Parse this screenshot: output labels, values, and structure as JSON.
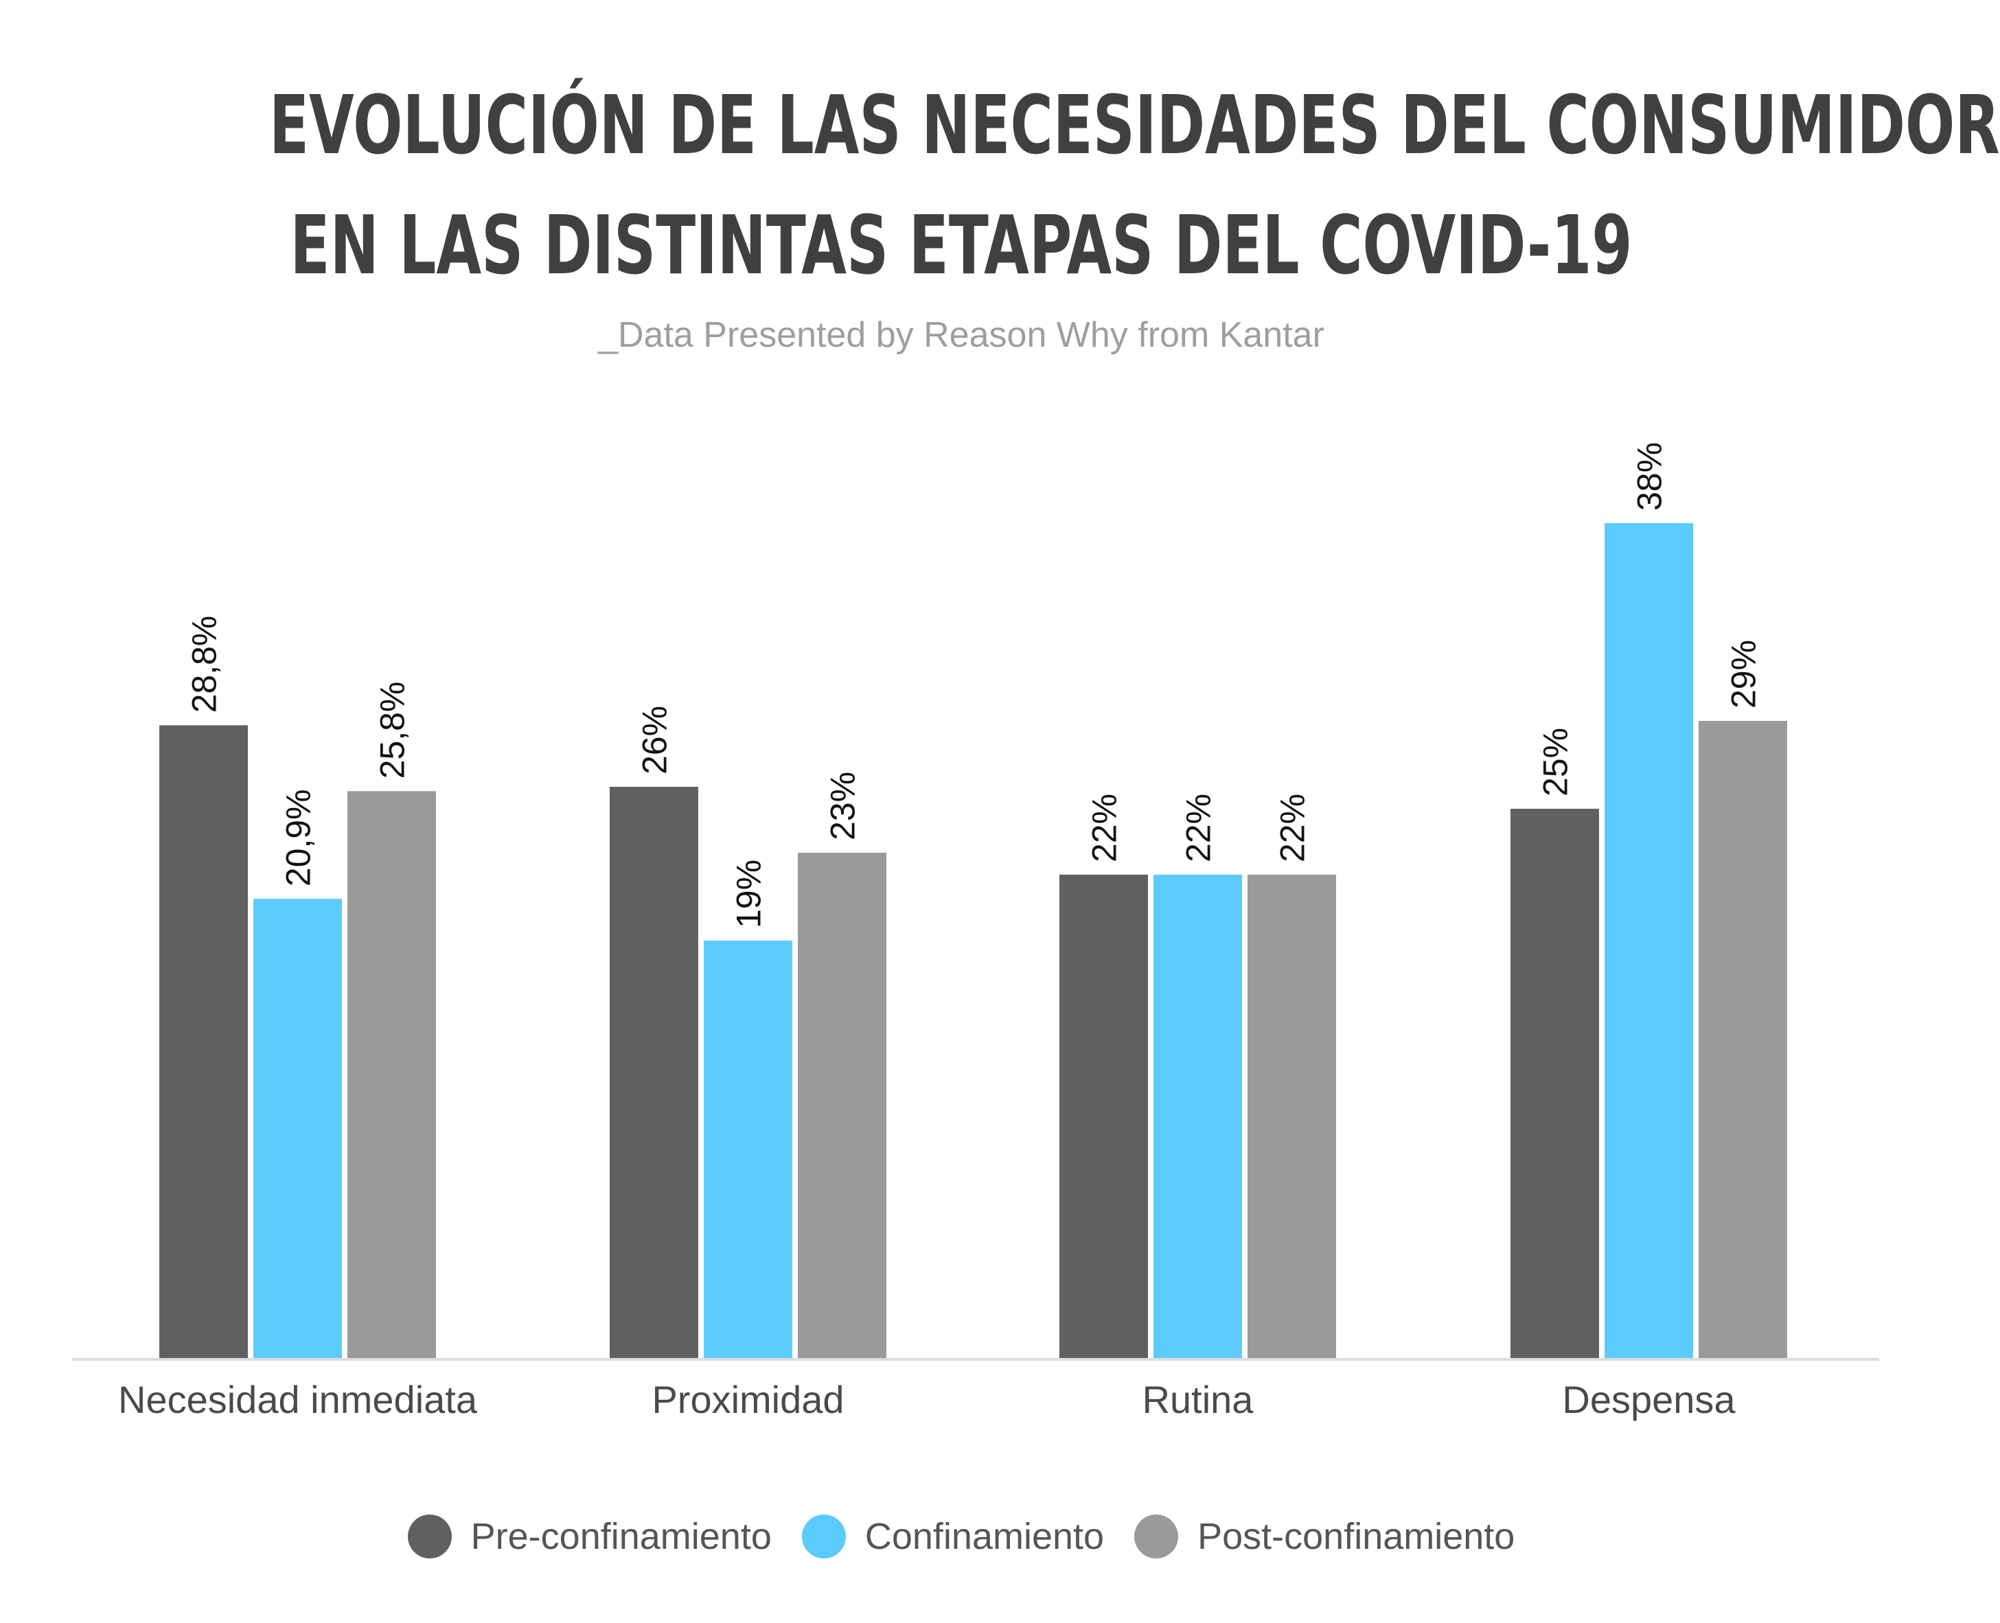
{
  "title_lines": [
    "EVOLUCIÓN DE LAS NECESIDADES DEL CONSUMIDOR",
    "EN LAS DISTINTAS ETAPAS DEL COVID-19"
  ],
  "subtitle": "_Data Presented by Reason Why from Kantar",
  "colors": {
    "pre": "#606060",
    "conf": "#5bcbfc",
    "post": "#9a9a9a",
    "axis": "#dddddd",
    "category_text": "#4a4a4a",
    "value_text": "#111111"
  },
  "chart_data": {
    "type": "bar",
    "title": "EVOLUCIÓN DE LAS NECESIDADES DEL CONSUMIDOR EN LAS DISTINTAS ETAPAS DEL COVID-19",
    "subtitle": "_Data Presented by Reason Why from Kantar",
    "categories": [
      "Necesidad inmediata",
      "Proximidad",
      "Rutina",
      "Despensa"
    ],
    "series": [
      {
        "name": "Pre-confinamiento",
        "values": [
          28.8,
          26,
          22,
          25
        ],
        "labels": [
          "28,8%",
          "26%",
          "22%",
          "25%"
        ],
        "color": "#606060"
      },
      {
        "name": "Confinamiento",
        "values": [
          20.9,
          19,
          22,
          38
        ],
        "labels": [
          "20,9%",
          "19%",
          "22%",
          "38%"
        ],
        "color": "#5bcbfc"
      },
      {
        "name": "Post-confinamiento",
        "values": [
          25.8,
          23,
          22,
          29
        ],
        "labels": [
          "25,8%",
          "23%",
          "22%",
          "29%"
        ],
        "color": "#9a9a9a"
      }
    ],
    "ylim": [
      0,
      40
    ],
    "grid": false,
    "legend": "bottom-center",
    "xlabel": "",
    "ylabel": ""
  }
}
